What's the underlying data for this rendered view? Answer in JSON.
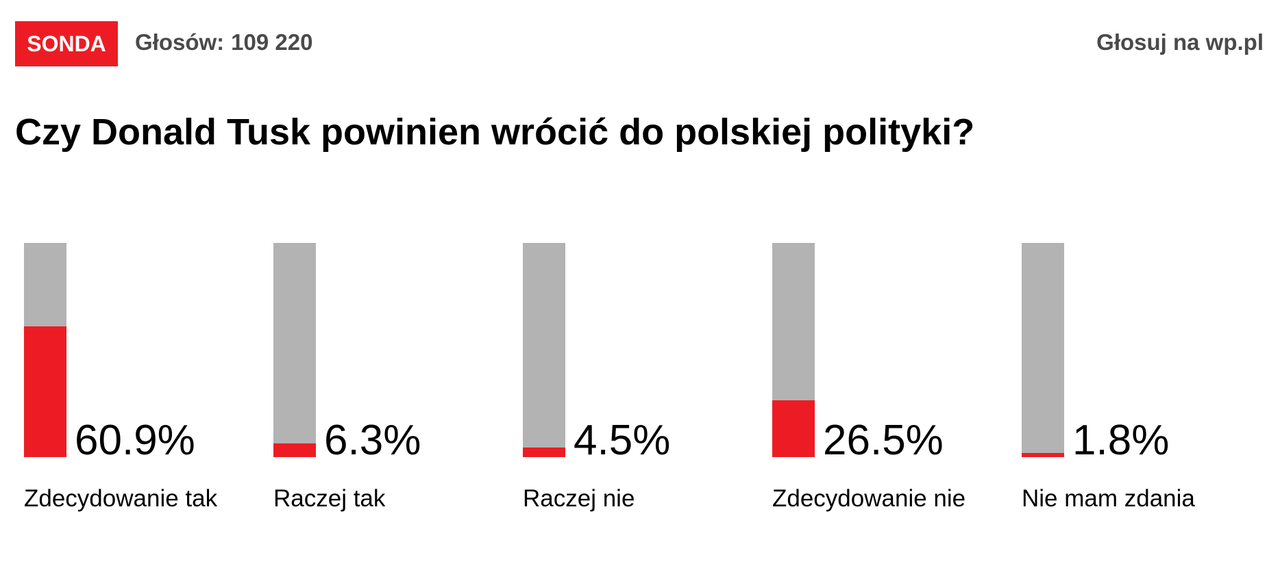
{
  "header": {
    "badge_label": "SONDA",
    "votes_label": "Głosów:",
    "votes_count": "109 220",
    "vote_link_label": "Głosuj na wp.pl"
  },
  "question": "Czy Donald Tusk powinien wrócić do polskiej polityki?",
  "colors": {
    "accent": "#ed1c24",
    "track": "#b3b3b3",
    "header_text": "#4a4a4a"
  },
  "chart_data": {
    "type": "bar",
    "orientation": "vertical",
    "title": "Czy Donald Tusk powinien wrócić do polskiej polityki?",
    "categories": [
      "Zdecydowanie tak",
      "Raczej tak",
      "Raczej nie",
      "Zdecydowanie nie",
      "Nie mam zdania"
    ],
    "values": [
      60.9,
      6.3,
      4.5,
      26.5,
      1.8
    ],
    "value_labels": [
      "60.9%",
      "6.3%",
      "4.5%",
      "26.5%",
      "1.8%"
    ],
    "unit": "%",
    "ylim": [
      0,
      100
    ],
    "grid": false,
    "legend": "none"
  }
}
